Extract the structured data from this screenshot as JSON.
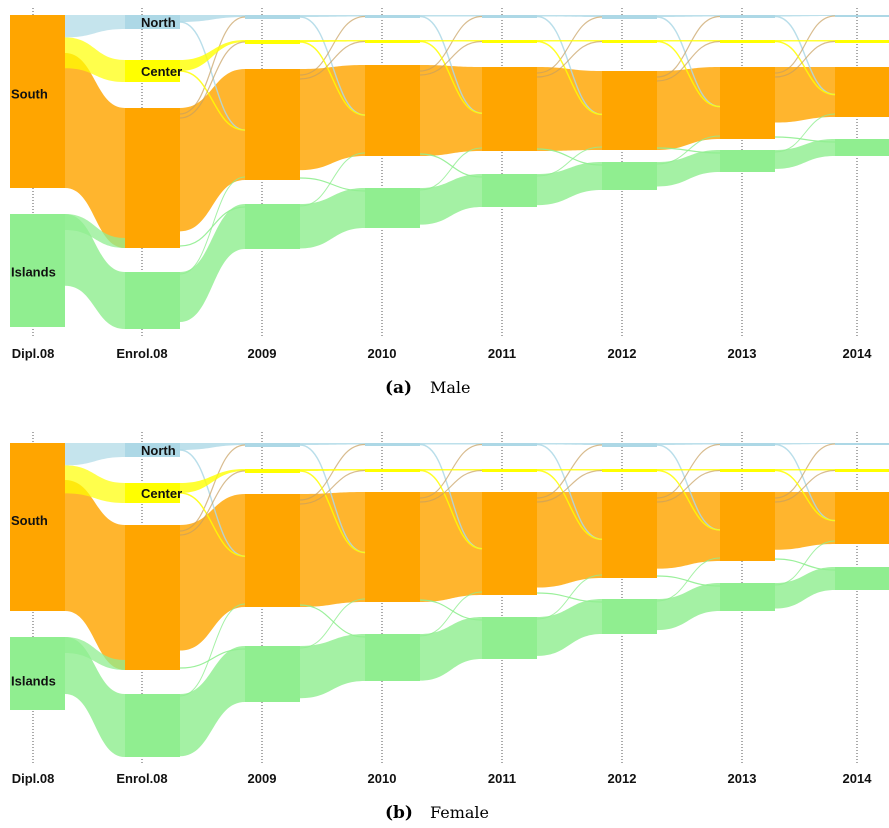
{
  "colors": {
    "North": "#ADD8E6",
    "Center": "#FFFF00",
    "South": "#FFA500",
    "Islands": "#90EE90"
  },
  "stages": [
    "Dipl.08",
    "Enrol.08",
    "2009",
    "2010",
    "2011",
    "2012",
    "2013",
    "2014"
  ],
  "chart_data": [
    {
      "type": "sankey",
      "caption_tag": "(a)",
      "caption": "Male",
      "node_labels": [
        {
          "stage": 0,
          "region": "South",
          "text": "South"
        },
        {
          "stage": 0,
          "region": "Islands",
          "text": "Islands"
        },
        {
          "stage": 1,
          "region": "North",
          "text": "North"
        },
        {
          "stage": 1,
          "region": "Center",
          "text": "Center"
        }
      ],
      "nodes": [
        [
          [
            "South",
            173
          ],
          [
            "Islands",
            113
          ]
        ],
        [
          [
            "North",
            14
          ],
          [
            "Center",
            22
          ],
          [
            "South",
            140
          ],
          [
            "Islands",
            57
          ]
        ],
        [
          [
            "North",
            4
          ],
          [
            "Center",
            4
          ],
          [
            "South",
            111
          ],
          [
            "Islands",
            45
          ]
        ],
        [
          [
            "North",
            3
          ],
          [
            "Center",
            3
          ],
          [
            "South",
            91
          ],
          [
            "Islands",
            40
          ]
        ],
        [
          [
            "North",
            3
          ],
          [
            "Center",
            3
          ],
          [
            "South",
            84
          ],
          [
            "Islands",
            33
          ]
        ],
        [
          [
            "North",
            4
          ],
          [
            "Center",
            3
          ],
          [
            "South",
            79
          ],
          [
            "Islands",
            28
          ]
        ],
        [
          [
            "North",
            3
          ],
          [
            "Center",
            3
          ],
          [
            "South",
            72
          ],
          [
            "Islands",
            22
          ]
        ],
        [
          [
            "North",
            2
          ],
          [
            "Center",
            3
          ],
          [
            "South",
            50
          ],
          [
            "Islands",
            17
          ]
        ]
      ]
    },
    {
      "type": "sankey",
      "caption_tag": "(b)",
      "caption": "Female",
      "node_labels": [
        {
          "stage": 0,
          "region": "South",
          "text": "South"
        },
        {
          "stage": 0,
          "region": "Islands",
          "text": "Islands"
        },
        {
          "stage": 1,
          "region": "North",
          "text": "North"
        },
        {
          "stage": 1,
          "region": "Center",
          "text": "Center"
        }
      ],
      "nodes": [
        [
          [
            "South",
            168
          ],
          [
            "Islands",
            73
          ]
        ],
        [
          [
            "North",
            14
          ],
          [
            "Center",
            20
          ],
          [
            "South",
            145
          ],
          [
            "Islands",
            63
          ]
        ],
        [
          [
            "North",
            4
          ],
          [
            "Center",
            4
          ],
          [
            "South",
            113
          ],
          [
            "Islands",
            56
          ]
        ],
        [
          [
            "North",
            3
          ],
          [
            "Center",
            3
          ],
          [
            "South",
            110
          ],
          [
            "Islands",
            47
          ]
        ],
        [
          [
            "North",
            3
          ],
          [
            "Center",
            3
          ],
          [
            "South",
            103
          ],
          [
            "Islands",
            42
          ]
        ],
        [
          [
            "North",
            4
          ],
          [
            "Center",
            3
          ],
          [
            "South",
            86
          ],
          [
            "Islands",
            35
          ]
        ],
        [
          [
            "North",
            3
          ],
          [
            "Center",
            3
          ],
          [
            "South",
            69
          ],
          [
            "Islands",
            28
          ]
        ],
        [
          [
            "North",
            2
          ],
          [
            "Center",
            3
          ],
          [
            "South",
            52
          ],
          [
            "Islands",
            23
          ]
        ]
      ]
    }
  ]
}
